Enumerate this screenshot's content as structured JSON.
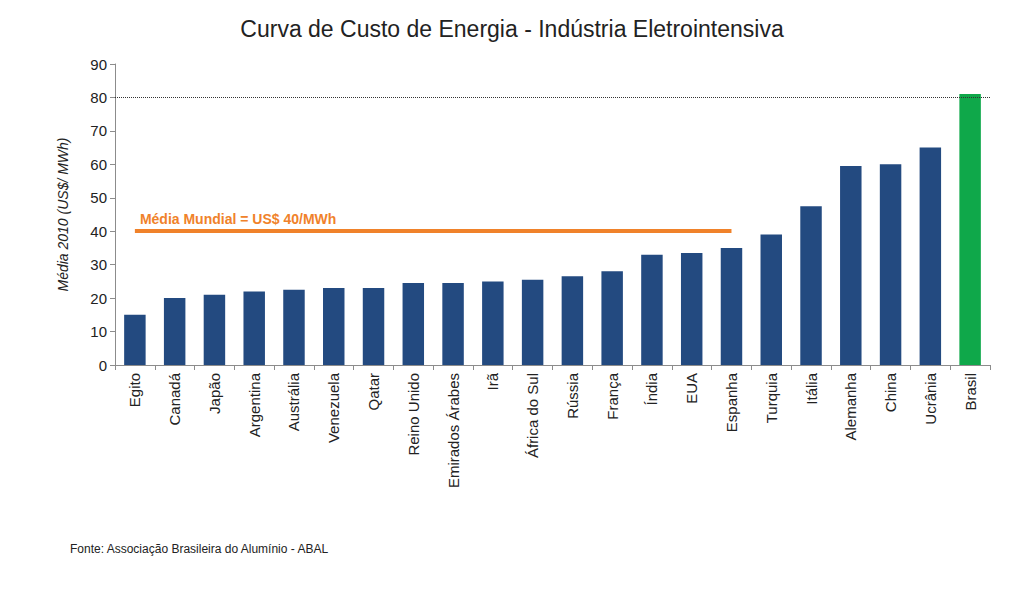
{
  "chart_data": {
    "type": "bar",
    "title": "Curva de Custo de Energia - Indústria Eletrointensiva",
    "y_label": "Média 2010 (US$/ MWh)",
    "source": "Fonte: Associação Brasileira do Alumínio - ABAL",
    "categories": [
      "Egito",
      "Canadá",
      "Japão",
      "Argentina",
      "Austrália",
      "Venezuela",
      "Qatar",
      "Reino Unido",
      "Emirados Árabes",
      "Irã",
      "África do Sul",
      "Rússia",
      "França",
      "Índia",
      "EUA",
      "Espanha",
      "Turquia",
      "Itália",
      "Alemanha",
      "China",
      "Ucrânia",
      "Brasil"
    ],
    "values": [
      15,
      20,
      21,
      22,
      22.5,
      23,
      23,
      24.5,
      24.5,
      25,
      25.5,
      26.5,
      28,
      33,
      33.5,
      35,
      39,
      47.5,
      59.5,
      60,
      65,
      81
    ],
    "colors": [
      "#234a80",
      "#234a80",
      "#234a80",
      "#234a80",
      "#234a80",
      "#234a80",
      "#234a80",
      "#234a80",
      "#234a80",
      "#234a80",
      "#234a80",
      "#234a80",
      "#234a80",
      "#234a80",
      "#234a80",
      "#234a80",
      "#234a80",
      "#234a80",
      "#234a80",
      "#234a80",
      "#234a80",
      "#0fa84a"
    ],
    "ylim": [
      0,
      90
    ],
    "yticks": [
      0,
      10,
      20,
      30,
      40,
      50,
      60,
      70,
      80,
      90
    ],
    "grid": false,
    "data_labels": false,
    "annotations": [
      {
        "text": "Média Mundial = US$ 40/MWh",
        "y": 40,
        "x_range": [
          "Egito",
          "Espanha"
        ],
        "color": "#f0822a"
      }
    ],
    "reference_lines": [
      {
        "y": 80,
        "line_style": "dotted"
      }
    ]
  }
}
